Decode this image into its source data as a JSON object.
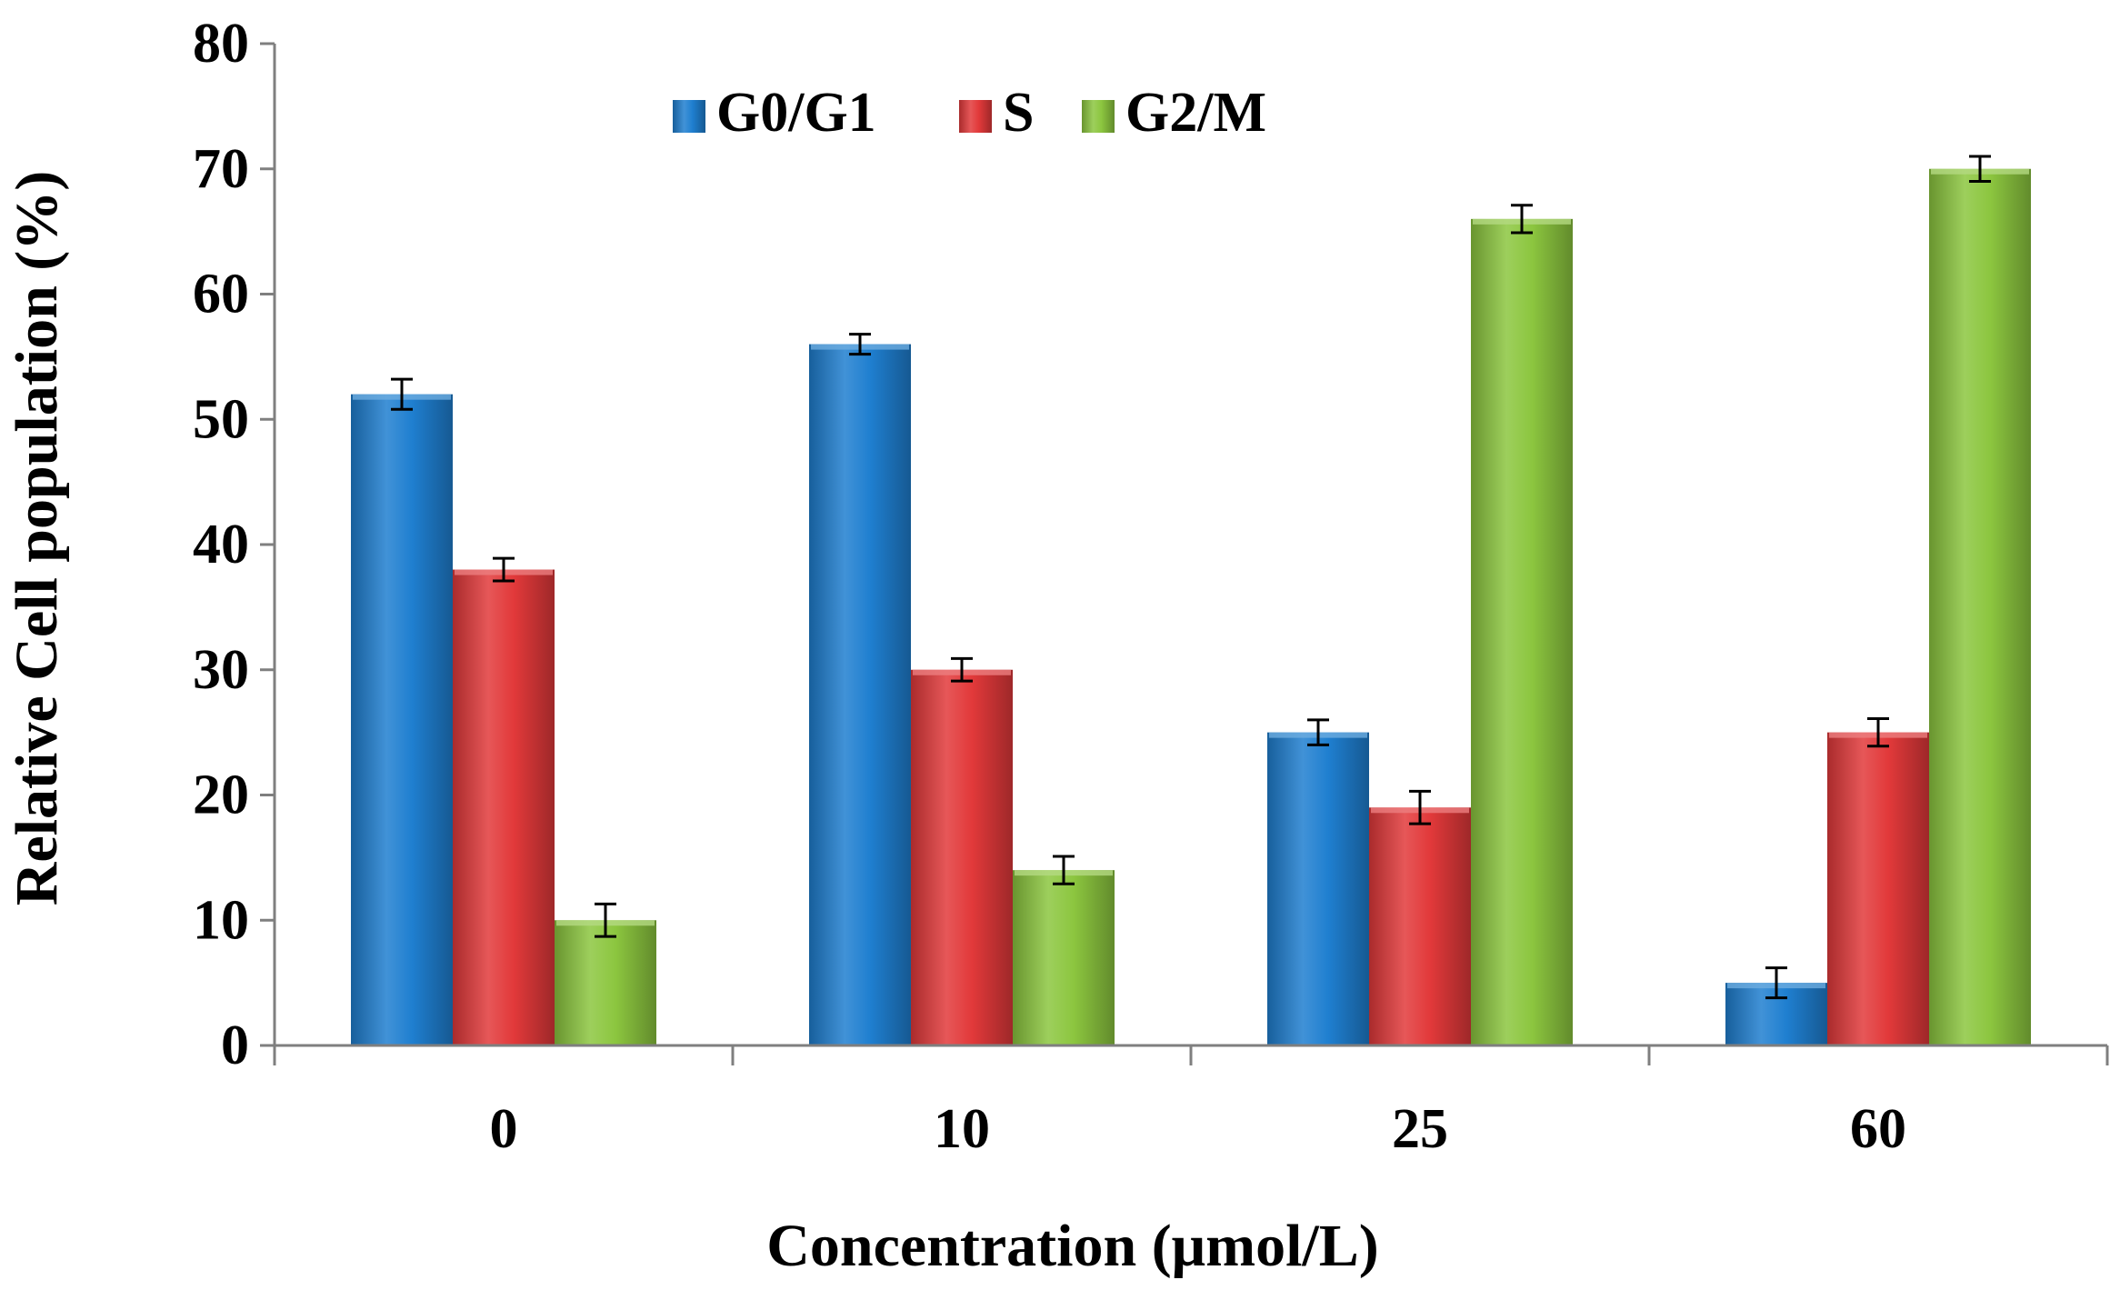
{
  "chart_data": {
    "type": "bar",
    "categories": [
      "0",
      "10",
      "25",
      "60"
    ],
    "series": [
      {
        "name": "G0/G1",
        "color": "#1f7fd0",
        "values": [
          52,
          56,
          25,
          5
        ],
        "errors": [
          1.2,
          0.8,
          1.0,
          1.2
        ]
      },
      {
        "name": "S",
        "color": "#e2393a",
        "values": [
          38,
          30,
          19,
          25
        ],
        "errors": [
          0.9,
          0.9,
          1.3,
          1.1
        ]
      },
      {
        "name": "G2/M",
        "color": "#8cc63f",
        "values": [
          10,
          14,
          66,
          70
        ],
        "errors": [
          1.3,
          1.1,
          1.1,
          1.0
        ]
      }
    ],
    "xlabel": "Concentration (μmol/L)",
    "ylabel": "Relative Cell population (%)",
    "ylim": [
      0,
      80
    ],
    "yticks": [
      0,
      10,
      20,
      30,
      40,
      50,
      60,
      70,
      80
    ],
    "grid": false,
    "legend_position": "top"
  }
}
